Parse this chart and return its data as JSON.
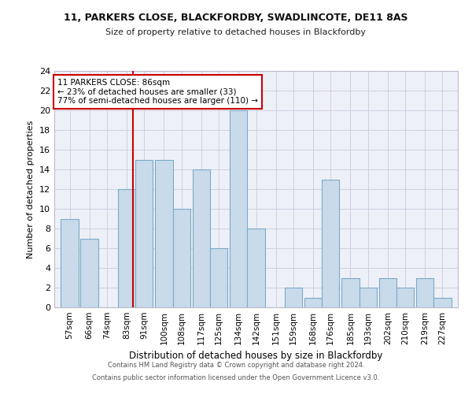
{
  "title1": "11, PARKERS CLOSE, BLACKFORDBY, SWADLINCOTE, DE11 8AS",
  "title2": "Size of property relative to detached houses in Blackfordby",
  "xlabel": "Distribution of detached houses by size in Blackfordby",
  "ylabel": "Number of detached properties",
  "bin_labels": [
    "57sqm",
    "66sqm",
    "74sqm",
    "83sqm",
    "91sqm",
    "100sqm",
    "108sqm",
    "117sqm",
    "125sqm",
    "134sqm",
    "142sqm",
    "151sqm",
    "159sqm",
    "168sqm",
    "176sqm",
    "185sqm",
    "193sqm",
    "202sqm",
    "210sqm",
    "219sqm",
    "227sqm"
  ],
  "bin_centers": [
    57,
    66,
    74,
    83,
    91,
    100,
    108,
    117,
    125,
    134,
    142,
    151,
    159,
    168,
    176,
    185,
    193,
    202,
    210,
    219,
    227
  ],
  "values": [
    9,
    7,
    0,
    12,
    15,
    15,
    10,
    14,
    6,
    20,
    8,
    0,
    2,
    1,
    13,
    3,
    2,
    3,
    2,
    3,
    1
  ],
  "bar_color": "#c9daea",
  "bar_edge_color": "#7aaac8",
  "grid_color": "#d0d0e0",
  "annotation_line1": "11 PARKERS CLOSE: 86sqm",
  "annotation_line2": "← 23% of detached houses are smaller (33)",
  "annotation_line3": "77% of semi-detached houses are larger (110) →",
  "annotation_border_color": "#cc0000",
  "vline_color": "#cc0000",
  "vline_x": 86,
  "ylim": [
    0,
    24
  ],
  "yticks": [
    0,
    2,
    4,
    6,
    8,
    10,
    12,
    14,
    16,
    18,
    20,
    22,
    24
  ],
  "xlim_min": 50,
  "xlim_max": 234,
  "bar_width": 8.0,
  "footer1": "Contains HM Land Registry data © Crown copyright and database right 2024.",
  "footer2": "Contains public sector information licensed under the Open Government Licence v3.0.",
  "fig_bg_color": "#ffffff",
  "plot_bg_color": "#eef0f8"
}
